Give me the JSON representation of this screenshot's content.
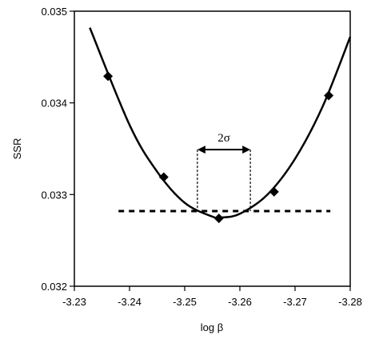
{
  "chart_data": {
    "type": "scatter",
    "xlabel": "log β",
    "ylabel": "SSR",
    "xlim": [
      -3.23,
      -3.28
    ],
    "xticks": [
      -3.23,
      -3.24,
      -3.25,
      -3.26,
      -3.27,
      -3.28
    ],
    "ylim": [
      0.032,
      0.035
    ],
    "yticks": [
      0.032,
      0.033,
      0.034,
      0.035
    ],
    "grid": false,
    "series": [
      {
        "name": "data",
        "color": "#000000",
        "marker": "diamond",
        "x": [
          -3.2361,
          -3.2462,
          -3.2562,
          -3.2662,
          -3.2761
        ],
        "values": [
          0.03429,
          0.03319,
          0.03274,
          0.03303,
          0.03408
        ]
      },
      {
        "name": "fit",
        "color": "#000000",
        "marker": "line",
        "x": [
          -3.2328,
          -3.24,
          -3.245,
          -3.25,
          -3.255,
          -3.2567,
          -3.26,
          -3.265,
          -3.27,
          -3.275,
          -3.28
        ],
        "values": [
          0.03482,
          0.03376,
          0.03325,
          0.03291,
          0.03276,
          0.03275,
          0.03279,
          0.033,
          0.03339,
          0.03396,
          0.03472
        ]
      }
    ],
    "threshold": {
      "x": [
        -3.238,
        -3.2764
      ],
      "y": 0.03282
    },
    "interval": {
      "text": "2σ",
      "x": [
        -3.2523,
        -3.2619
      ],
      "y": 0.03349
    }
  }
}
